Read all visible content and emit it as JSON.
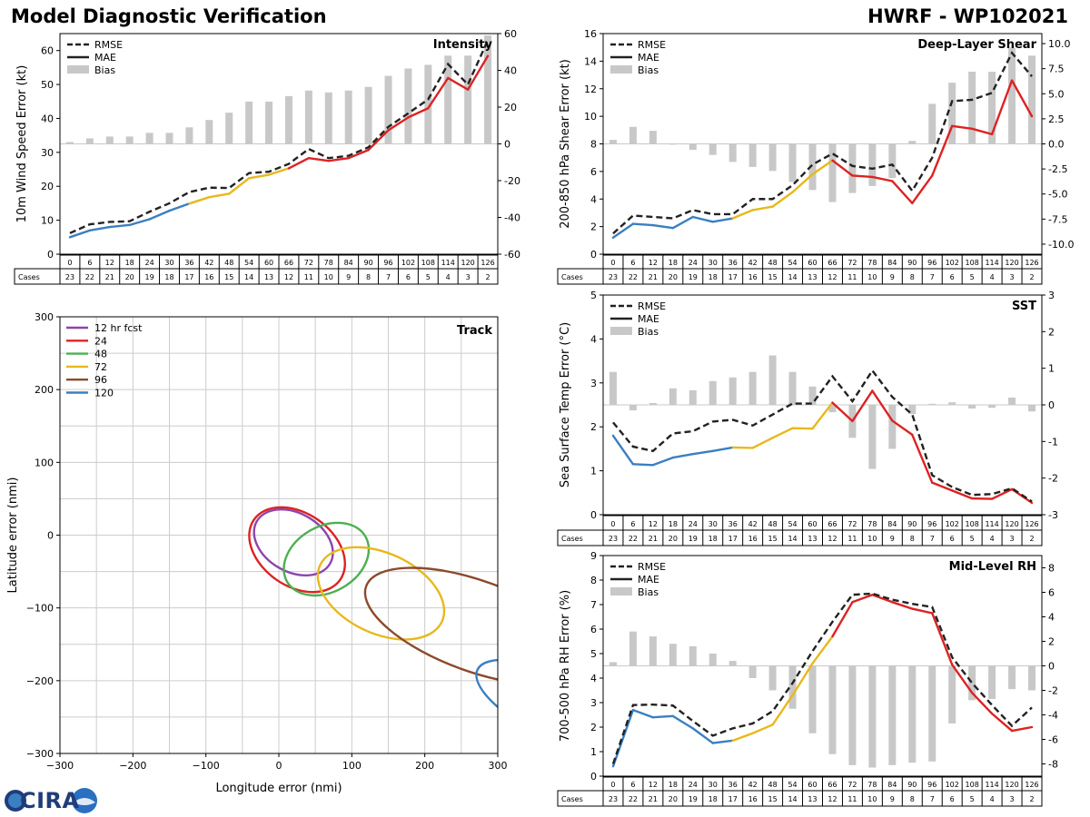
{
  "header": {
    "title_left": "Model Diagnostic Verification",
    "title_right": "HWRF - WP102021"
  },
  "logo": {
    "text": "CIRA"
  },
  "colors": {
    "blue": "#3a7fc0",
    "yellow": "#e8b81c",
    "red": "#dd2222",
    "bias": "#c8c8c8",
    "rmse": "#222222",
    "grid": "#cccccc",
    "purple": "#8e44ad",
    "green": "#4caf50",
    "brown": "#8b4a2b"
  },
  "legend_labels": {
    "rmse": "RMSE",
    "mae": "MAE",
    "bias": "Bias",
    "cases": "Cases"
  },
  "chart_data": [
    {
      "id": "intensity",
      "type": "line",
      "title": "Intensity",
      "ylabel": "10m Wind Speed Error (kt)",
      "lead_hours": [
        0,
        6,
        12,
        18,
        24,
        30,
        36,
        42,
        48,
        54,
        60,
        66,
        72,
        78,
        84,
        90,
        96,
        102,
        108,
        114,
        120,
        126
      ],
      "cases": [
        23,
        22,
        21,
        20,
        19,
        18,
        17,
        16,
        15,
        14,
        13,
        12,
        11,
        10,
        9,
        8,
        7,
        6,
        5,
        4,
        3,
        2
      ],
      "ylim": [
        0,
        65
      ],
      "yticks": [
        0,
        10,
        20,
        30,
        40,
        50,
        60
      ],
      "y2lim": [
        -60,
        60
      ],
      "y2ticks": [
        -60,
        -40,
        -20,
        0,
        20,
        40,
        60
      ],
      "series": [
        {
          "name": "RMSE",
          "values": [
            6.2,
            8.8,
            9.5,
            9.7,
            12.5,
            15,
            18.3,
            19.6,
            19.5,
            23.9,
            24.3,
            26.6,
            31,
            28.3,
            29,
            31.5,
            37.5,
            41.5,
            45.6,
            56,
            50,
            63
          ]
        },
        {
          "name": "MAE",
          "values": [
            5,
            7,
            8,
            8.6,
            10.3,
            12.8,
            14.9,
            16.8,
            17.8,
            22.4,
            23.4,
            25.3,
            28.3,
            27.5,
            28.3,
            30.7,
            36.5,
            40.3,
            43,
            51.9,
            48.5,
            58.4
          ]
        },
        {
          "name": "Bias",
          "values": [
            1,
            3,
            4,
            4,
            6,
            6,
            9,
            13,
            17,
            23,
            23,
            26,
            29,
            28,
            29,
            31,
            37,
            41,
            43,
            48,
            48,
            59
          ]
        }
      ]
    },
    {
      "id": "shear",
      "type": "line",
      "title": "Deep-Layer Shear",
      "ylabel": "200-850 hPa Shear Error (kt)",
      "lead_hours": [
        0,
        6,
        12,
        18,
        24,
        30,
        36,
        42,
        48,
        54,
        60,
        66,
        72,
        78,
        84,
        90,
        96,
        102,
        108,
        114,
        120,
        126
      ],
      "cases": [
        23,
        22,
        21,
        20,
        19,
        18,
        17,
        16,
        15,
        14,
        13,
        12,
        11,
        10,
        9,
        8,
        7,
        6,
        5,
        4,
        3,
        2
      ],
      "ylim": [
        0,
        16
      ],
      "yticks": [
        0,
        2,
        4,
        6,
        8,
        10,
        12,
        14,
        16
      ],
      "y2lim": [
        -11.0,
        11.0
      ],
      "y2ticks": [
        -10.0,
        -7.5,
        -5.0,
        -2.5,
        0.0,
        2.5,
        5.0,
        7.5,
        10.0
      ],
      "series": [
        {
          "name": "RMSE",
          "values": [
            1.5,
            2.8,
            2.7,
            2.6,
            3.2,
            2.9,
            2.9,
            4,
            4,
            5,
            6.5,
            7.3,
            6.4,
            6.2,
            6.5,
            4.6,
            7,
            11.1,
            11.2,
            11.7,
            14.6,
            12.9
          ]
        },
        {
          "name": "MAE",
          "values": [
            1.2,
            2.2,
            2.1,
            1.9,
            2.7,
            2.35,
            2.6,
            3.2,
            3.45,
            4.5,
            5.8,
            6.8,
            5.7,
            5.6,
            5.3,
            3.7,
            5.7,
            9.3,
            9.1,
            8.7,
            12.6,
            10
          ]
        },
        {
          "name": "Bias",
          "values": [
            0.4,
            1.7,
            1.3,
            0,
            -0.6,
            -1.1,
            -1.8,
            -2.3,
            -2.7,
            -3.8,
            -4.6,
            -5.8,
            -4.9,
            -4.2,
            -3.4,
            0.3,
            4,
            6.1,
            7.2,
            7.2,
            9.6,
            8.8
          ]
        }
      ]
    },
    {
      "id": "sst",
      "type": "line",
      "title": "SST",
      "ylabel": "Sea Surface Temp Error (°C)",
      "lead_hours": [
        0,
        6,
        12,
        18,
        24,
        30,
        36,
        42,
        48,
        54,
        60,
        66,
        72,
        78,
        84,
        90,
        96,
        102,
        108,
        114,
        120,
        126
      ],
      "cases": [
        23,
        22,
        21,
        20,
        19,
        18,
        17,
        16,
        15,
        14,
        13,
        12,
        11,
        10,
        9,
        8,
        7,
        6,
        5,
        4,
        3,
        2
      ],
      "ylim": [
        0,
        5
      ],
      "yticks": [
        0,
        1,
        2,
        3,
        4,
        5
      ],
      "y2lim": [
        -3,
        3
      ],
      "y2ticks": [
        -3,
        -2,
        -1,
        0,
        1,
        2,
        3
      ],
      "series": [
        {
          "name": "RMSE",
          "values": [
            2.1,
            1.55,
            1.45,
            1.85,
            1.9,
            2.12,
            2.16,
            2.03,
            2.28,
            2.53,
            2.53,
            3.15,
            2.58,
            3.28,
            2.68,
            2.28,
            0.9,
            0.63,
            0.45,
            0.47,
            0.6,
            0.3
          ]
        },
        {
          "name": "MAE",
          "values": [
            1.8,
            1.15,
            1.13,
            1.3,
            1.38,
            1.45,
            1.53,
            1.52,
            1.75,
            1.97,
            1.96,
            2.55,
            2.13,
            2.82,
            2.14,
            1.82,
            0.73,
            0.55,
            0.37,
            0.36,
            0.58,
            0.27
          ]
        },
        {
          "name": "Bias",
          "values": [
            0.9,
            -0.15,
            0.05,
            0.45,
            0.4,
            0.65,
            0.75,
            0.9,
            1.35,
            0.9,
            0.5,
            -0.2,
            -0.9,
            -1.75,
            -1.2,
            -0.25,
            0.03,
            0.07,
            -0.1,
            -0.08,
            0.2,
            -0.18
          ]
        }
      ]
    },
    {
      "id": "rh",
      "type": "line",
      "title": "Mid-Level RH",
      "ylabel": "700-500 hPa RH Error (%)",
      "lead_hours": [
        0,
        6,
        12,
        18,
        24,
        30,
        36,
        42,
        48,
        54,
        60,
        66,
        72,
        78,
        84,
        90,
        96,
        102,
        108,
        114,
        120,
        126
      ],
      "cases": [
        23,
        22,
        21,
        20,
        19,
        18,
        17,
        16,
        15,
        14,
        13,
        12,
        11,
        10,
        9,
        8,
        7,
        6,
        5,
        4,
        3,
        2
      ],
      "ylim": [
        0,
        9
      ],
      "yticks": [
        0,
        1,
        2,
        3,
        4,
        5,
        6,
        7,
        8,
        9
      ],
      "y2lim": [
        -9,
        9
      ],
      "y2ticks": [
        -8,
        -6,
        -4,
        -2,
        0,
        2,
        4,
        6,
        8
      ],
      "series": [
        {
          "name": "RMSE",
          "values": [
            0.5,
            2.9,
            2.92,
            2.88,
            2.25,
            1.65,
            1.95,
            2.15,
            2.65,
            3.8,
            5.1,
            6.3,
            7.4,
            7.45,
            7.2,
            7.03,
            6.9,
            4.85,
            3.8,
            2.9,
            2.05,
            2.8
          ]
        },
        {
          "name": "MAE",
          "values": [
            0.4,
            2.7,
            2.4,
            2.45,
            1.95,
            1.35,
            1.45,
            1.75,
            2.1,
            3.3,
            4.6,
            5.7,
            7.1,
            7.4,
            7.1,
            6.83,
            6.65,
            4.55,
            3.4,
            2.55,
            1.85,
            2
          ]
        },
        {
          "name": "Bias",
          "values": [
            0.3,
            2.8,
            2.4,
            1.8,
            1.6,
            1,
            0.4,
            -1,
            -2,
            -3.5,
            -5.5,
            -7.2,
            -8.1,
            -8.3,
            -8.1,
            -7.9,
            -7.8,
            -4.7,
            -2.8,
            -2.7,
            -1.9,
            -2
          ]
        }
      ]
    },
    {
      "id": "track",
      "type": "scatter",
      "title": "Track",
      "xlabel": "Longitude error (nmi)",
      "ylabel": "Latitude error (nmi)",
      "xlim": [
        -300,
        300
      ],
      "ylim": [
        -300,
        300
      ],
      "xticks": [
        -300,
        -200,
        -100,
        0,
        100,
        200,
        300
      ],
      "yticks": [
        -300,
        -200,
        -100,
        0,
        100,
        200,
        300
      ],
      "grid": true,
      "legend_position": "top-left",
      "ellipses": [
        {
          "label": "12 hr fcst",
          "color": "#8e44ad",
          "cx": 20,
          "cy": -10,
          "rx": 58,
          "ry": 40,
          "angle": -30
        },
        {
          "label": "24",
          "color": "#dd2222",
          "cx": 25,
          "cy": -20,
          "rx": 72,
          "ry": 50,
          "angle": -35
        },
        {
          "label": "48",
          "color": "#4caf50",
          "cx": 65,
          "cy": -33,
          "rx": 62,
          "ry": 45,
          "angle": 30
        },
        {
          "label": "72",
          "color": "#e8b81c",
          "cx": 140,
          "cy": -80,
          "rx": 92,
          "ry": 55,
          "angle": -25
        },
        {
          "label": "96",
          "color": "#8b4a2b",
          "cx": 270,
          "cy": -125,
          "rx": 160,
          "ry": 62,
          "angle": -20
        },
        {
          "label": "120",
          "color": "#3a7fc0",
          "cx": 390,
          "cy": -240,
          "rx": 130,
          "ry": 45,
          "angle": -25
        }
      ]
    }
  ]
}
